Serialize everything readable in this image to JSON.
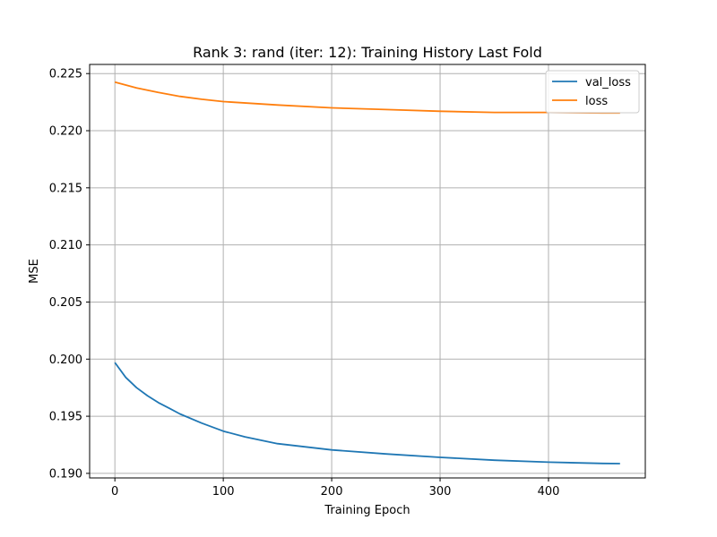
{
  "chart_data": {
    "type": "line",
    "title": "Rank 3: rand (iter: 12): Training History Last Fold",
    "xlabel": "Training Epoch",
    "ylabel": "MSE",
    "xlim": [
      -23.3,
      489.3
    ],
    "ylim": [
      0.1896,
      0.2258
    ],
    "xticks": [
      0,
      100,
      200,
      300,
      400
    ],
    "xtick_labels": [
      "0",
      "100",
      "200",
      "300",
      "400"
    ],
    "yticks": [
      0.19,
      0.195,
      0.2,
      0.205,
      0.21,
      0.215,
      0.22,
      0.225
    ],
    "ytick_labels": [
      "0.190",
      "0.195",
      "0.200",
      "0.205",
      "0.210",
      "0.215",
      "0.220",
      "0.225"
    ],
    "grid": true,
    "legend_position": "top-right",
    "series": [
      {
        "name": "val_loss",
        "color": "#1f77b4",
        "x": [
          0,
          10,
          20,
          30,
          40,
          50,
          60,
          80,
          100,
          120,
          150,
          200,
          250,
          300,
          350,
          400,
          450,
          466
        ],
        "y": [
          0.1997,
          0.1984,
          0.1975,
          0.1968,
          0.1962,
          0.1957,
          0.1952,
          0.1944,
          0.1937,
          0.1932,
          0.1926,
          0.19205,
          0.1917,
          0.1914,
          0.19115,
          0.19098,
          0.19087,
          0.19085
        ]
      },
      {
        "name": "loss",
        "color": "#ff7f0e",
        "x": [
          0,
          10,
          20,
          40,
          60,
          80,
          100,
          150,
          200,
          250,
          300,
          350,
          400,
          450,
          466
        ],
        "y": [
          0.22425,
          0.224,
          0.22375,
          0.22335,
          0.223,
          0.22275,
          0.22255,
          0.22225,
          0.222,
          0.22185,
          0.2217,
          0.2216,
          0.2216,
          0.22155,
          0.22155
        ]
      }
    ]
  }
}
